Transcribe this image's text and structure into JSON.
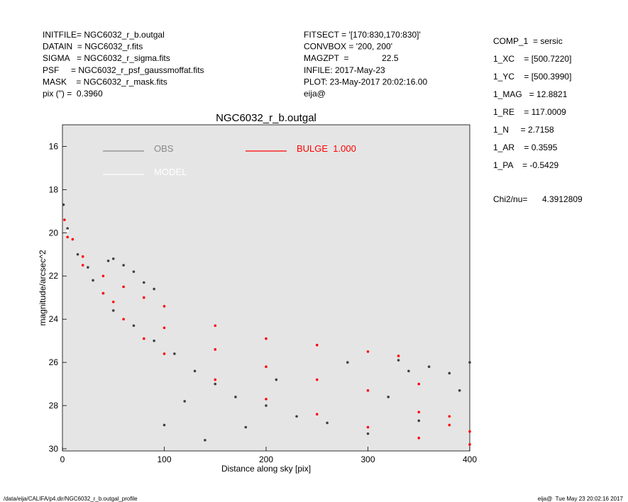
{
  "header": {
    "left": [
      "INITFILE= NGC6032_r_b.outgal",
      "DATAIN  = NGC6032_r.fits",
      "SIGMA   = NGC6032_r_sigma.fits",
      "PSF     = NGC6032_r_psf_gaussmoffat.fits",
      "MASK    = NGC6032_r_mask.fits",
      "pix (\") =  0.3960"
    ],
    "middle": [
      "FITSECT = '[170:830,170:830]'",
      "CONVBOX = '200, 200'",
      "MAGZPT  =              22.5",
      "INFILE: 2017-May-23",
      "PLOT: 23-May-2017 20:02:16.00",
      "eija@"
    ],
    "params": [
      "COMP_1  = sersic",
      "1_XC    = [500.7220]",
      "1_YC    = [500.3990]",
      "1_MAG   = 12.8821",
      "1_RE    = 117.0009",
      "1_N     = 2.7158",
      "1_AR    = 0.3595",
      "1_PA    = -0.5429"
    ],
    "chi2_label": "Chi2/nu=",
    "chi2_value": "4.3912809"
  },
  "chart_data": {
    "type": "scatter",
    "title": "NGC6032_r_b.outgal",
    "x_label": "Distance along sky [pix]",
    "y_label": "magnitude/arcsec^2",
    "xlim": [
      0,
      400
    ],
    "ylim": [
      30.1,
      15
    ],
    "xticks": [
      0,
      100,
      200,
      300,
      400
    ],
    "yticks": [
      16,
      18,
      20,
      22,
      24,
      26,
      28,
      30
    ],
    "series": [
      {
        "name": "OBS",
        "color": "#404040",
        "legend_color": "#888888",
        "x": [
          1,
          5,
          15,
          25,
          30,
          40,
          45,
          50,
          60,
          70,
          80,
          90,
          50,
          70,
          90,
          110,
          130,
          150,
          170,
          200,
          230,
          120,
          180,
          260,
          300,
          330,
          340,
          360,
          380,
          400,
          320,
          280,
          350,
          390,
          210,
          140,
          100
        ],
        "values": [
          18.7,
          19.8,
          21.0,
          21.6,
          22.2,
          22.8,
          21.3,
          21.2,
          21.5,
          21.8,
          22.3,
          22.6,
          23.6,
          24.3,
          25.0,
          25.6,
          26.4,
          27.0,
          27.6,
          28.0,
          28.5,
          27.8,
          29.0,
          28.8,
          29.3,
          25.9,
          26.4,
          26.2,
          26.5,
          26.0,
          27.6,
          26.0,
          28.7,
          27.3,
          26.8,
          29.6,
          28.9
        ]
      },
      {
        "name": "MODEL",
        "color": "#ffffff",
        "legend_color": "#ffffff",
        "x": [
          5,
          50,
          100
        ],
        "values": [
          19.9,
          23.2,
          24.4
        ]
      },
      {
        "name": "BULGE  1.000",
        "color": "#ff0000",
        "legend_color": "#ff0000",
        "x": [
          2,
          10,
          20,
          40,
          60,
          80,
          100,
          150,
          200,
          250,
          300,
          330,
          350,
          380,
          400,
          5,
          20,
          40,
          60,
          80,
          100,
          150,
          200,
          250,
          300,
          350,
          400,
          50,
          100,
          150,
          200,
          250,
          300,
          350,
          380
        ],
        "values": [
          19.4,
          20.3,
          21.1,
          22.0,
          22.5,
          23.0,
          23.4,
          24.3,
          24.9,
          25.2,
          25.5,
          25.7,
          27.0,
          28.5,
          29.2,
          20.2,
          21.5,
          22.8,
          24.0,
          24.9,
          25.6,
          26.8,
          27.7,
          28.4,
          29.0,
          29.5,
          29.8,
          23.2,
          24.4,
          25.4,
          26.2,
          26.8,
          27.3,
          28.3,
          28.9
        ]
      }
    ]
  },
  "footer": {
    "left": "/data/eija/CALIFA/p4.dir/NGC6032_r_b.outgal_profile",
    "right": "eija@  Tue May 23 20:02:16 2017"
  }
}
